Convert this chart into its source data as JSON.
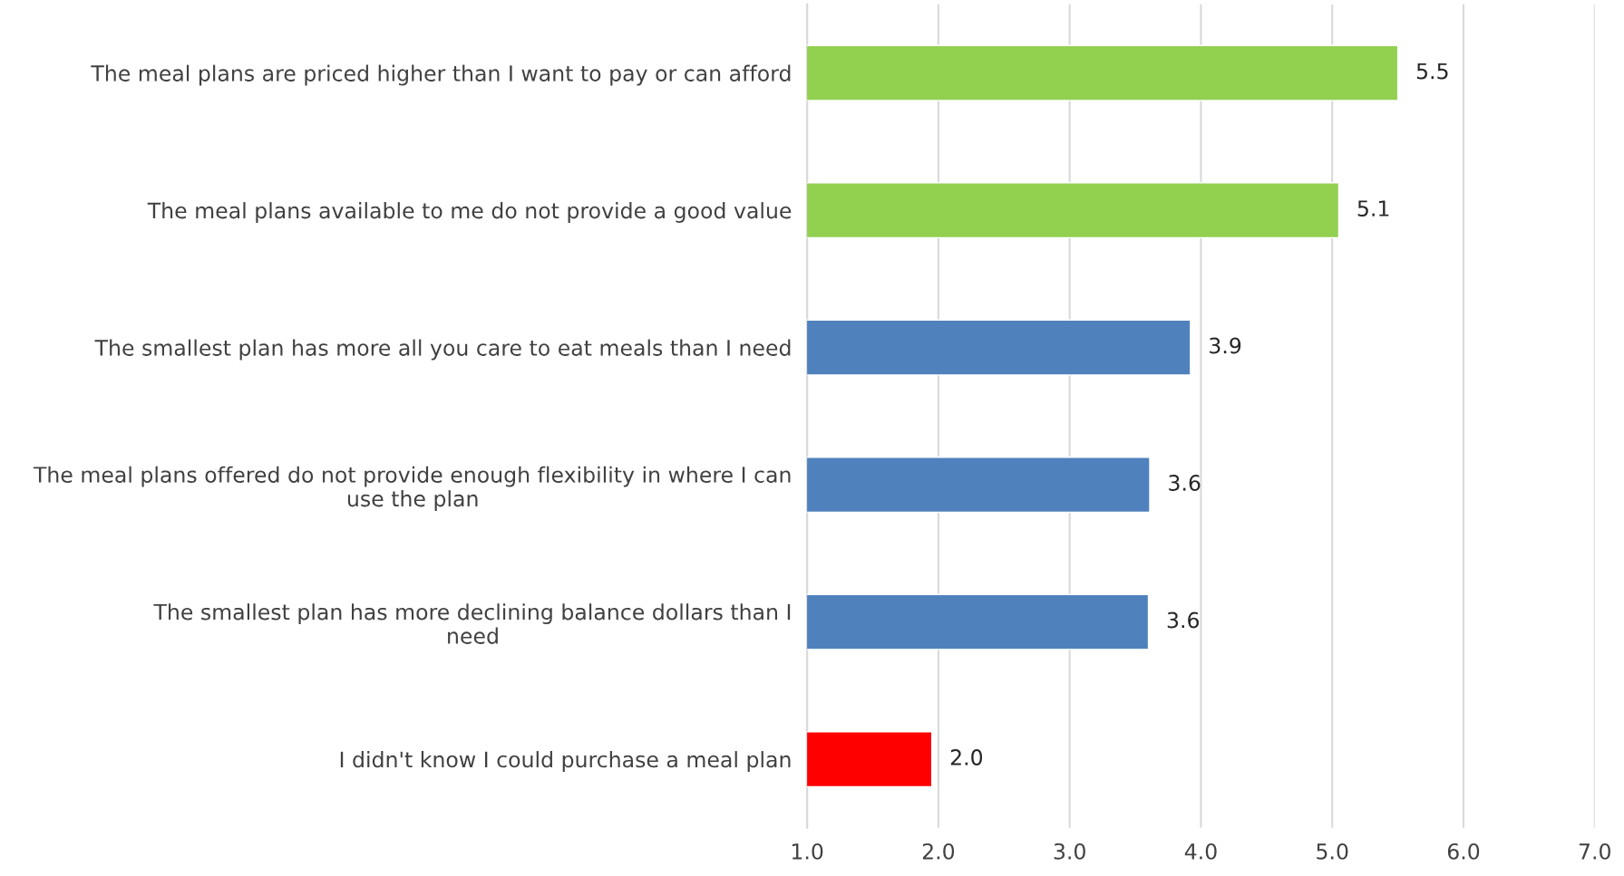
{
  "chart_data": {
    "type": "bar",
    "orientation": "horizontal",
    "categories": [
      "The meal plans are priced higher than I want to pay or can afford",
      "The meal plans available to me do not provide a good value",
      "The smallest plan has more all you care to eat meals than I need",
      "The meal plans offered do not provide enough flexibility in where I can\nuse the plan",
      "The smallest plan has more declining balance dollars than I\nneed",
      "I didn't know I could purchase a meal plan"
    ],
    "values": [
      5.5,
      5.05,
      3.92,
      3.61,
      3.6,
      1.95
    ],
    "value_labels": [
      "5.5",
      "5.1",
      "3.9",
      "3.6",
      "3.6",
      "2.0"
    ],
    "colors": [
      "#92d050",
      "#92d050",
      "#4f81bd",
      "#4f81bd",
      "#4f81bd",
      "#ff0000"
    ],
    "xlim": [
      1,
      7
    ],
    "xticks": [
      {
        "value": 1,
        "label": "1.0"
      },
      {
        "value": 2,
        "label": "2.0"
      },
      {
        "value": 3,
        "label": "3.0"
      },
      {
        "value": 4,
        "label": "4.0"
      },
      {
        "value": 5,
        "label": "5.0"
      },
      {
        "value": 6,
        "label": "6.0"
      },
      {
        "value": 7,
        "label": "7.0"
      }
    ],
    "grid": "x",
    "legend": false
  }
}
